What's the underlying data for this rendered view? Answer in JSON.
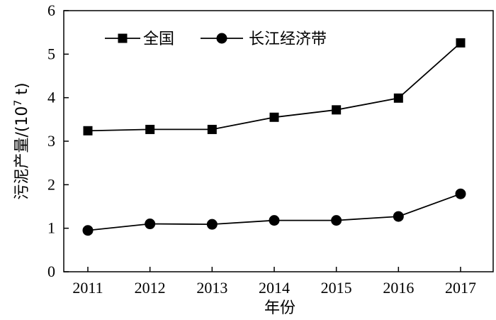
{
  "chart_data": {
    "type": "line",
    "x": [
      "2011",
      "2012",
      "2013",
      "2014",
      "2015",
      "2016",
      "2017"
    ],
    "series": [
      {
        "name": "全国",
        "marker": "square",
        "values": [
          3.24,
          3.27,
          3.27,
          3.55,
          3.72,
          3.99,
          5.26
        ]
      },
      {
        "name": "长江经济带",
        "marker": "circle",
        "values": [
          0.95,
          1.1,
          1.09,
          1.18,
          1.18,
          1.27,
          1.79
        ]
      }
    ],
    "xlabel": "年份",
    "ylabel": {
      "prefix": "污泥产量/(10",
      "sup": "7",
      "suffix": " t)"
    },
    "ylim": [
      0,
      6
    ],
    "yticks": [
      "0",
      "1",
      "2",
      "3",
      "4",
      "5",
      "6"
    ],
    "grid": false,
    "legend_position": "top-left",
    "colors": {
      "line": "#000000",
      "marker": "#000000"
    }
  }
}
